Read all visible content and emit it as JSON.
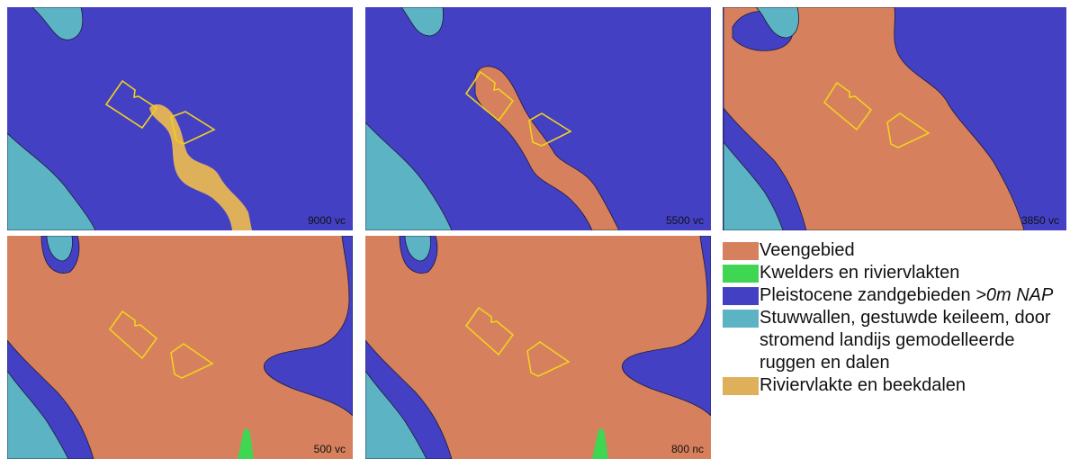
{
  "colors": {
    "peat": "#d7805e",
    "salt_marsh_river_plain": "#3fd653",
    "pleistocene_sand": "#4340c4",
    "push_moraine": "#5cb3c3",
    "river_valley": "#ddb059",
    "site_outline": "#f0d21e"
  },
  "panels": [
    {
      "id": "p1",
      "period_label": "9000 vc"
    },
    {
      "id": "p2",
      "period_label": "5500 vc"
    },
    {
      "id": "p3",
      "period_label": "3850 vc"
    },
    {
      "id": "p4",
      "period_label": "500 vc"
    },
    {
      "id": "p5",
      "period_label": "800 nc"
    }
  ],
  "legend": {
    "items": [
      {
        "label": "Veengebied",
        "color": "#d7805e"
      },
      {
        "label": "Kwelders en riviervlakten",
        "color": "#3fd653"
      },
      {
        "label": "Pleistocene zandgebieden",
        "label_italic": ">0m NAP",
        "color": "#4340c4"
      },
      {
        "label": "Stuwwallen, gestuwde keileem, door stromend landijs gemodelleerde ruggen en dalen",
        "color": "#5cb3c3"
      },
      {
        "label": "Riviervlakte en beekdalen",
        "color": "#ddb059"
      }
    ]
  }
}
